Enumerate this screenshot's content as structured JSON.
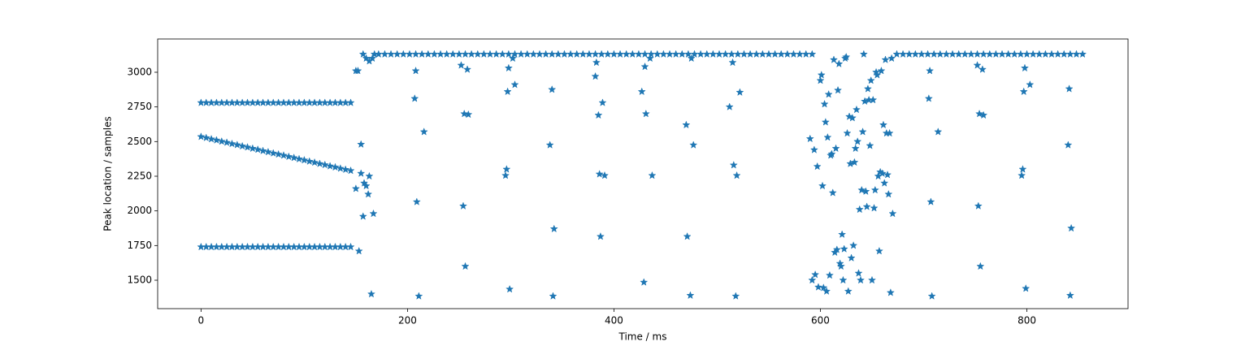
{
  "chart_data": {
    "type": "scatter",
    "marker": "star",
    "color": "#1f77b4",
    "x_label": "Time / ms",
    "y_label": "Peak location / samples",
    "xlim": [
      -42,
      898
    ],
    "ylim": [
      1295,
      3240
    ],
    "xticks": [
      0,
      200,
      400,
      600,
      800
    ],
    "yticks": [
      1500,
      1750,
      2000,
      2250,
      2500,
      2750,
      3000
    ],
    "grid": false,
    "x": [
      0,
      5,
      10,
      15,
      20,
      25,
      30,
      35,
      40,
      45,
      50,
      55,
      60,
      65,
      70,
      75,
      80,
      85,
      90,
      95,
      100,
      105,
      110,
      115,
      120,
      125,
      130,
      135,
      140,
      145,
      0,
      5,
      10,
      15,
      20,
      25,
      30,
      35,
      40,
      45,
      50,
      55,
      60,
      65,
      70,
      75,
      80,
      85,
      90,
      95,
      100,
      105,
      110,
      115,
      120,
      125,
      130,
      135,
      140,
      145,
      0,
      5,
      10,
      15,
      20,
      25,
      30,
      35,
      40,
      45,
      50,
      55,
      60,
      65,
      70,
      75,
      80,
      85,
      90,
      95,
      100,
      105,
      110,
      115,
      120,
      125,
      130,
      135,
      140,
      145,
      150,
      152,
      155,
      157,
      153,
      150,
      155,
      158,
      160,
      162,
      163,
      165,
      167,
      157,
      160,
      163,
      166,
      168,
      172,
      178,
      184,
      190,
      196,
      202,
      208,
      214,
      220,
      226,
      232,
      238,
      244,
      250,
      256,
      262,
      268,
      274,
      280,
      286,
      292,
      298,
      304,
      310,
      316,
      322,
      328,
      334,
      340,
      346,
      352,
      358,
      364,
      370,
      376,
      382,
      388,
      394,
      400,
      406,
      412,
      418,
      424,
      430,
      436,
      442,
      448,
      454,
      460,
      466,
      472,
      478,
      484,
      490,
      496,
      502,
      508,
      514,
      520,
      526,
      532,
      538,
      544,
      550,
      556,
      562,
      568,
      574,
      580,
      586,
      592,
      674,
      680,
      686,
      692,
      698,
      704,
      710,
      716,
      722,
      728,
      734,
      740,
      746,
      752,
      758,
      764,
      770,
      776,
      782,
      788,
      794,
      800,
      806,
      812,
      818,
      824,
      830,
      836,
      842,
      848,
      854,
      207,
      208,
      209,
      211,
      216,
      252,
      254,
      255,
      256,
      258,
      259,
      295,
      296,
      297,
      298,
      299,
      302,
      304,
      338,
      340,
      341,
      342,
      382,
      383,
      385,
      386,
      387,
      389,
      391,
      427,
      429,
      430,
      431,
      437,
      435,
      470,
      471,
      474,
      477,
      475,
      512,
      515,
      516,
      518,
      519,
      522,
      590,
      592,
      594,
      595,
      597,
      598,
      600,
      601,
      602,
      603,
      604,
      605,
      606,
      607,
      608,
      609,
      610,
      611,
      612,
      613,
      614,
      615,
      616,
      617,
      618,
      619,
      620,
      621,
      622,
      623,
      624,
      625,
      626,
      627,
      628,
      629,
      630,
      631,
      632,
      633,
      634,
      635,
      636,
      637,
      638,
      639,
      640,
      641,
      642,
      643,
      644,
      645,
      646,
      647,
      648,
      649,
      650,
      651,
      652,
      653,
      654,
      655,
      656,
      657,
      658,
      659,
      660,
      661,
      662,
      663,
      664,
      665,
      666,
      667,
      668,
      669,
      670,
      705,
      706,
      707,
      708,
      714,
      752,
      753,
      754,
      755,
      757,
      758,
      795,
      796,
      797,
      798,
      799,
      803,
      840,
      841,
      842,
      843
    ],
    "values": [
      2780,
      2780,
      2780,
      2780,
      2780,
      2780,
      2780,
      2780,
      2780,
      2780,
      2780,
      2780,
      2780,
      2780,
      2780,
      2780,
      2780,
      2780,
      2780,
      2780,
      2780,
      2780,
      2780,
      2780,
      2780,
      2780,
      2780,
      2780,
      2780,
      2780,
      2535,
      2527,
      2518,
      2510,
      2501,
      2493,
      2484,
      2476,
      2467,
      2459,
      2450,
      2442,
      2433,
      2425,
      2416,
      2408,
      2400,
      2391,
      2383,
      2374,
      2366,
      2357,
      2349,
      2340,
      2332,
      2323,
      2315,
      2306,
      2298,
      2290,
      1740,
      1740,
      1740,
      1740,
      1740,
      1740,
      1740,
      1740,
      1740,
      1740,
      1740,
      1740,
      1740,
      1740,
      1740,
      1740,
      1740,
      1740,
      1740,
      1740,
      1740,
      1740,
      1740,
      1740,
      1740,
      1740,
      1740,
      1740,
      1740,
      1740,
      3010,
      3010,
      2480,
      1960,
      1710,
      2160,
      2270,
      2200,
      2180,
      2120,
      2250,
      1400,
      1980,
      3130,
      3100,
      3080,
      3100,
      3130,
      3130,
      3130,
      3130,
      3130,
      3130,
      3130,
      3130,
      3130,
      3130,
      3130,
      3130,
      3130,
      3130,
      3130,
      3130,
      3130,
      3130,
      3130,
      3130,
      3130,
      3130,
      3130,
      3130,
      3130,
      3130,
      3130,
      3130,
      3130,
      3130,
      3130,
      3130,
      3130,
      3130,
      3130,
      3130,
      3130,
      3130,
      3130,
      3130,
      3130,
      3130,
      3130,
      3130,
      3130,
      3130,
      3130,
      3130,
      3130,
      3130,
      3130,
      3130,
      3130,
      3130,
      3130,
      3130,
      3130,
      3130,
      3130,
      3130,
      3130,
      3130,
      3130,
      3130,
      3130,
      3130,
      3130,
      3130,
      3130,
      3130,
      3130,
      3130,
      3130,
      3130,
      3130,
      3130,
      3130,
      3130,
      3130,
      3130,
      3130,
      3130,
      3130,
      3130,
      3130,
      3130,
      3130,
      3130,
      3130,
      3130,
      3130,
      3130,
      3130,
      3130,
      3130,
      3130,
      3130,
      3130,
      3130,
      3130,
      3130,
      3130,
      3130,
      2810,
      3010,
      2065,
      1385,
      2570,
      3050,
      2035,
      2700,
      1600,
      3020,
      2695,
      2255,
      2300,
      2860,
      3030,
      1435,
      3100,
      2910,
      2475,
      2875,
      1385,
      1870,
      2970,
      3070,
      2690,
      2265,
      1815,
      2780,
      2255,
      2860,
      1485,
      3040,
      2700,
      2255,
      3100,
      2620,
      1815,
      1390,
      2475,
      3100,
      2750,
      3070,
      2330,
      1385,
      2255,
      2855,
      2520,
      1500,
      2440,
      1540,
      2320,
      1450,
      2940,
      2980,
      2180,
      1445,
      2770,
      2640,
      1420,
      2530,
      2840,
      1535,
      2400,
      2410,
      2130,
      3090,
      1700,
      2450,
      1720,
      2870,
      3060,
      1620,
      1600,
      1830,
      1500,
      1725,
      3100,
      3110,
      2560,
      1420,
      2680,
      2340,
      1660,
      2670,
      1750,
      2350,
      2450,
      2730,
      2500,
      1550,
      2010,
      1500,
      2150,
      2570,
      3130,
      2790,
      2140,
      2030,
      2880,
      2800,
      2470,
      2940,
      1500,
      2800,
      2020,
      2150,
      3000,
      2980,
      2250,
      1710,
      2280,
      3010,
      2270,
      2620,
      2200,
      3090,
      2560,
      2260,
      2120,
      2560,
      1410,
      3100,
      1980,
      2810,
      3010,
      2065,
      1385,
      2570,
      3050,
      2035,
      2700,
      1600,
      3020,
      2690,
      2255,
      2300,
      2860,
      3030,
      1440,
      2910,
      2475,
      2880,
      1390,
      1875
    ]
  }
}
